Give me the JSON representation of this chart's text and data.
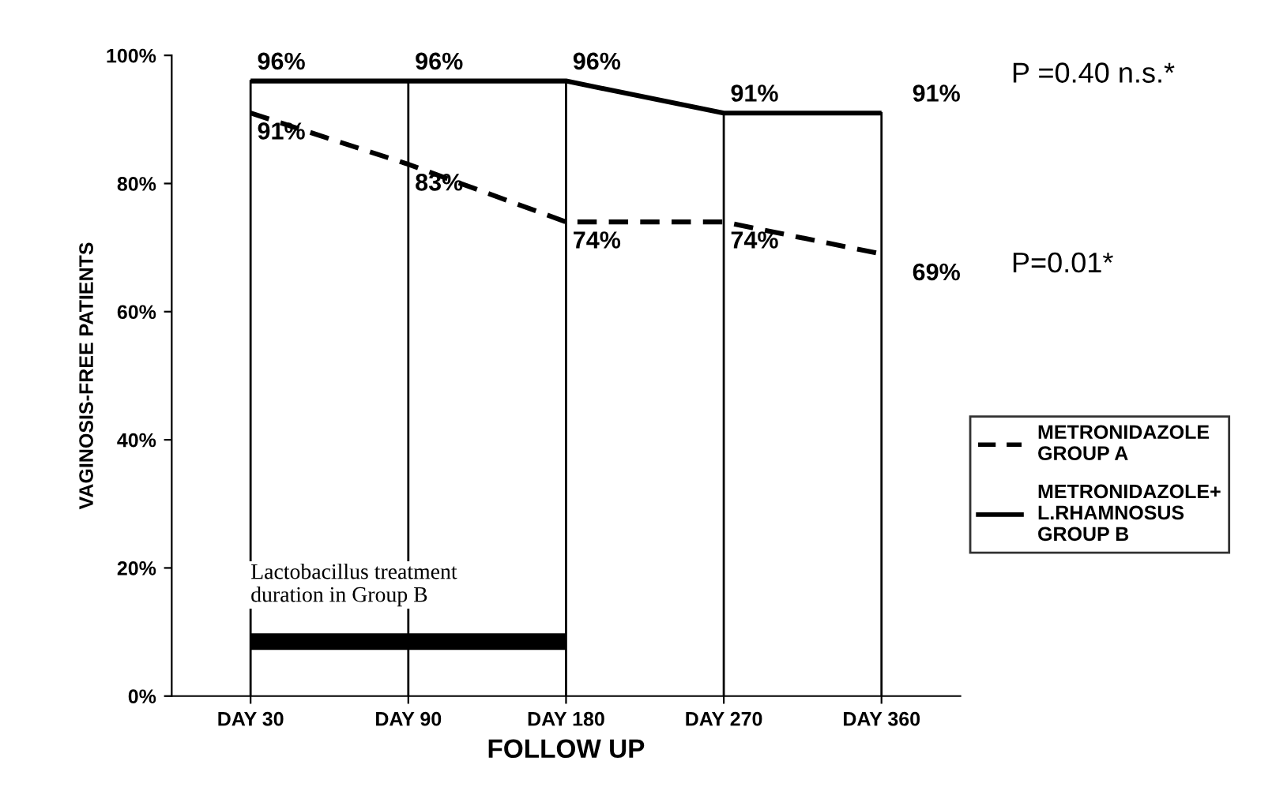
{
  "chart_data": {
    "type": "line",
    "xlabel": "FOLLOW UP",
    "ylabel": "VAGINOSIS-FREE PATIENTS",
    "categories": [
      "DAY 30",
      "DAY 90",
      "DAY 180",
      "DAY 270",
      "DAY 360"
    ],
    "series": [
      {
        "name": "METRONIDAZOLE\nGROUP A",
        "color": "#000000",
        "line_style": "dashed",
        "values": [
          91,
          83,
          74,
          74,
          69
        ],
        "value_labels": [
          "91%",
          "83%",
          "74%",
          "74%",
          "69%"
        ]
      },
      {
        "name": "METRONIDAZOLE+\nL.RHAMNOSUS\nGROUP B",
        "color": "#000000",
        "line_style": "solid",
        "values": [
          96,
          96,
          96,
          91,
          91
        ],
        "value_labels": [
          "96%",
          "96%",
          "96%",
          "91%",
          "91%"
        ]
      },
      {
        "color": "#000000",
        "line_style": "solid",
        "values": [
          8.5,
          8.5,
          8.5,
          null,
          null
        ]
      }
    ],
    "ylim": [
      0,
      100
    ],
    "yticks": [
      {
        "value": 0,
        "label": "0%"
      },
      {
        "value": 20,
        "label": "20%"
      },
      {
        "value": 40,
        "label": "40%"
      },
      {
        "value": 60,
        "label": "60%"
      },
      {
        "value": 80,
        "label": "80%"
      },
      {
        "value": 100,
        "label": "100%"
      }
    ],
    "grid": "x",
    "legend": "right",
    "marker": "none",
    "annotations": [
      "P =0.40 n.s.*",
      "P=0.01*",
      "Lactobacillus treatment\nduration in Group B"
    ]
  }
}
